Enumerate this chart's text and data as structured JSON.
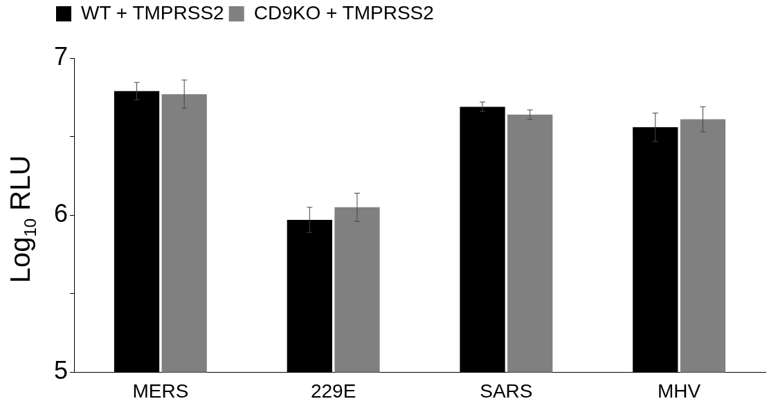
{
  "chart_data": {
    "type": "bar",
    "ylabel": "Log$_{10}$ RLU",
    "categories": [
      "MERS",
      "229E",
      "SARS",
      "MHV"
    ],
    "series": [
      {
        "name": "WT + TMPRSS2",
        "color": "#000000",
        "values": [
          6.79,
          5.97,
          6.69,
          6.56
        ],
        "errors": [
          0.055,
          0.08,
          0.03,
          0.09
        ]
      },
      {
        "name": "CD9KO + TMPRSS2",
        "color": "#808080",
        "values": [
          6.77,
          6.05,
          6.64,
          6.61
        ],
        "errors": [
          0.09,
          0.09,
          0.03,
          0.08
        ]
      }
    ],
    "ylim": [
      5,
      7
    ],
    "yticks": [
      5,
      {
        "value": 5.5,
        "label": null
      },
      6,
      {
        "value": 6.5,
        "label": null
      },
      7
    ],
    "grid": false,
    "legend": "top left"
  }
}
